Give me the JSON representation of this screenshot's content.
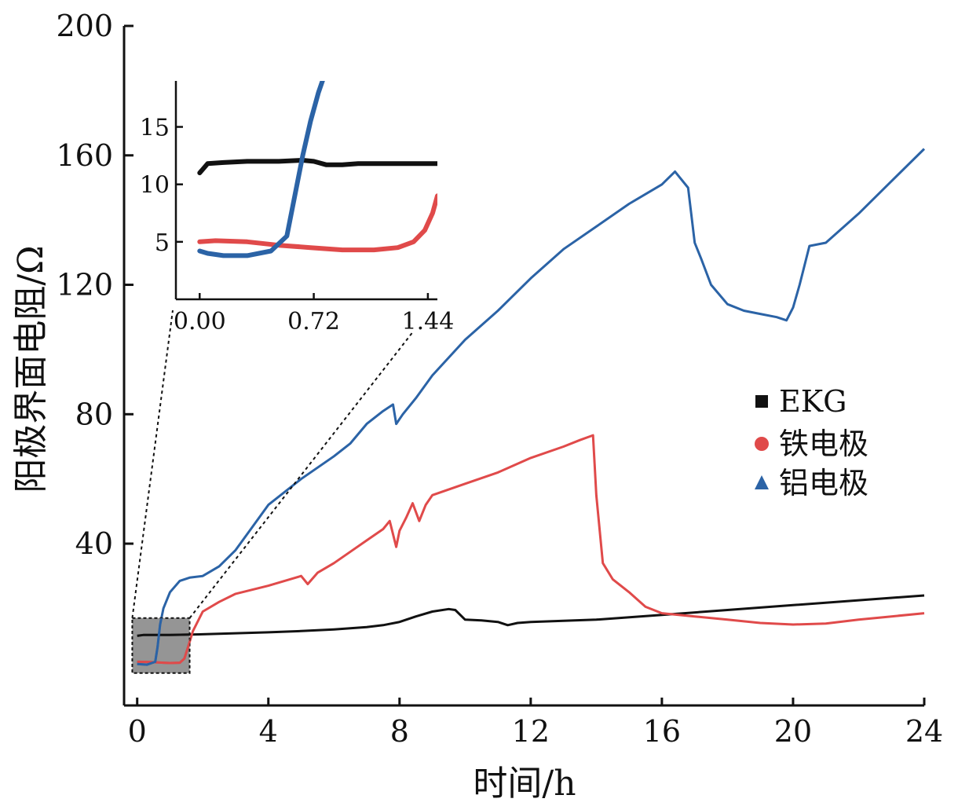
{
  "chart_data": {
    "type": "line",
    "xlabel": "时间/h",
    "ylabel": "阳极界面电阻/Ω",
    "xlim": [
      -0.4,
      24
    ],
    "ylim": [
      -10,
      200
    ],
    "xticks": [
      0,
      4,
      8,
      12,
      16,
      20,
      24
    ],
    "xtick_labels": [
      "0",
      "4",
      "8",
      "12",
      "16",
      "20",
      "24"
    ],
    "yticks": [
      40,
      80,
      120,
      160,
      200
    ],
    "ytick_labels": [
      "40",
      "80",
      "120",
      "160",
      "200"
    ],
    "grid": false,
    "legend": {
      "position": "right",
      "entries": [
        {
          "label": "EKG",
          "marker": "square",
          "color": "#111111"
        },
        {
          "label": "铁电极",
          "marker": "circle",
          "color": "#e04a4a"
        },
        {
          "label": "铝电极",
          "marker": "triangle",
          "color": "#2b63a6"
        }
      ]
    },
    "series": [
      {
        "name": "EKG",
        "color": "#111111",
        "x": [
          0,
          0.2,
          1,
          2,
          3,
          4,
          5,
          6,
          7,
          7.5,
          8,
          8.5,
          9,
          9.5,
          9.7,
          10,
          10.5,
          11,
          11.3,
          11.6,
          12,
          14,
          16,
          18,
          20,
          22,
          24
        ],
        "y": [
          11.5,
          11.8,
          11.8,
          12.0,
          12.3,
          12.6,
          13.0,
          13.5,
          14.2,
          14.8,
          15.8,
          17.5,
          19.0,
          19.8,
          19.5,
          16.5,
          16.3,
          15.8,
          14.8,
          15.5,
          15.8,
          16.5,
          18.0,
          19.5,
          21.0,
          22.5,
          24.0
        ]
      },
      {
        "name": "铁电极",
        "color": "#e04a4a",
        "x": [
          0,
          0.4,
          0.8,
          1.0,
          1.3,
          1.44,
          1.55,
          1.7,
          2.0,
          2.5,
          3,
          4,
          5,
          5.2,
          5.5,
          6,
          6.5,
          7,
          7.5,
          7.7,
          7.9,
          8.0,
          8.2,
          8.4,
          8.6,
          8.8,
          9,
          10,
          11,
          12,
          13,
          13.5,
          13.9,
          14.0,
          14.2,
          14.5,
          15,
          15.5,
          16,
          17,
          18,
          19,
          20,
          21,
          22,
          23,
          24
        ],
        "y": [
          3.5,
          3.4,
          3.2,
          3.1,
          3.2,
          4.5,
          8.0,
          13.0,
          19.0,
          22.0,
          24.5,
          27.0,
          30.0,
          27.5,
          31.0,
          34.0,
          37.5,
          41.0,
          44.5,
          47.0,
          39.0,
          44.0,
          48.0,
          52.5,
          47.0,
          52.0,
          55.0,
          58.5,
          62.0,
          66.5,
          70.0,
          72.0,
          73.5,
          55.0,
          34.0,
          29.0,
          25.0,
          20.5,
          18.5,
          17.5,
          16.5,
          15.5,
          15.0,
          15.3,
          16.5,
          17.5,
          18.5
        ]
      },
      {
        "name": "铝电极",
        "color": "#2b63a6",
        "x": [
          0,
          0.3,
          0.55,
          0.62,
          0.7,
          0.8,
          1.0,
          1.3,
          1.6,
          2.0,
          2.5,
          3,
          3.5,
          4,
          5,
          6,
          6.5,
          7,
          7.5,
          7.8,
          7.9,
          8.1,
          8.5,
          9,
          10,
          11,
          12,
          13,
          14,
          15,
          16,
          16.4,
          16.8,
          17.0,
          17.2,
          17.5,
          18,
          18.5,
          19,
          19.5,
          19.8,
          20.0,
          20.2,
          20.5,
          21,
          22,
          23,
          24
        ],
        "y": [
          2.8,
          2.6,
          3.5,
          8.0,
          15.0,
          20.0,
          25.0,
          28.5,
          29.5,
          30.0,
          33.0,
          38.0,
          45.0,
          52.0,
          60.0,
          67.0,
          71.0,
          77.0,
          81.0,
          83.0,
          77.0,
          80.0,
          85.0,
          92.0,
          103.0,
          112.0,
          122.0,
          131.0,
          138.0,
          145.0,
          151.0,
          155.0,
          150.0,
          133.0,
          128.0,
          120.0,
          114.0,
          112.0,
          111.0,
          110.0,
          109.0,
          113.0,
          120.0,
          132.0,
          133.0,
          142.0,
          152.0,
          162.0
        ]
      }
    ],
    "inset": {
      "xlim": [
        -0.15,
        1.5
      ],
      "ylim": [
        0,
        19
      ],
      "xticks": [
        0.0,
        0.72,
        1.44
      ],
      "xtick_labels": [
        "0.00",
        "0.72",
        "1.44"
      ],
      "yticks": [
        5,
        10,
        15
      ],
      "ytick_labels": [
        "5",
        "10",
        "15"
      ],
      "highlight_region": {
        "x": [
          -0.15,
          1.6
        ],
        "y": [
          0,
          17
        ]
      },
      "series": [
        {
          "name": "EKG",
          "color": "#111111",
          "x": [
            0.0,
            0.05,
            0.15,
            0.3,
            0.5,
            0.65,
            0.72,
            0.8,
            0.9,
            1.0,
            1.2,
            1.44,
            1.5
          ],
          "y": [
            11.0,
            11.8,
            11.9,
            12.0,
            12.0,
            12.1,
            12.0,
            11.7,
            11.7,
            11.8,
            11.8,
            11.8,
            11.8
          ]
        },
        {
          "name": "铁电极",
          "color": "#e04a4a",
          "x": [
            0.0,
            0.1,
            0.3,
            0.5,
            0.7,
            0.9,
            1.1,
            1.25,
            1.35,
            1.42,
            1.47,
            1.5
          ],
          "y": [
            5.0,
            5.1,
            5.0,
            4.7,
            4.5,
            4.3,
            4.3,
            4.5,
            5.0,
            6.0,
            7.5,
            9.0
          ]
        },
        {
          "name": "铝电极",
          "color": "#2b63a6",
          "x": [
            0.0,
            0.05,
            0.15,
            0.3,
            0.45,
            0.55,
            0.6,
            0.65,
            0.7,
            0.75,
            0.8
          ],
          "y": [
            4.2,
            4.0,
            3.8,
            3.8,
            4.2,
            5.5,
            9.0,
            12.5,
            15.5,
            18.0,
            20.0
          ]
        }
      ]
    }
  }
}
